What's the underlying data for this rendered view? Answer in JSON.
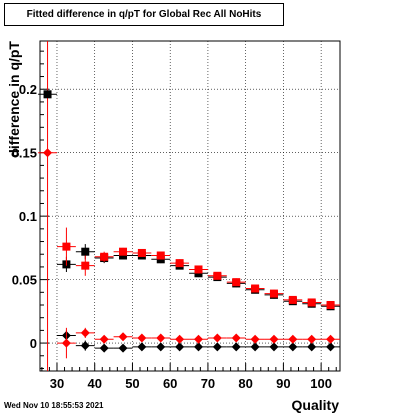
{
  "chart_data": {
    "type": "scatter",
    "title": "Fitted difference in q/pT for Global Rec All NoHits",
    "xlabel": "Quality",
    "ylabel": "difference in q/pT",
    "xlim": [
      25.5,
      105
    ],
    "ylim": [
      -0.022,
      0.238
    ],
    "x_ticks": [
      30,
      40,
      50,
      60,
      70,
      80,
      90,
      100
    ],
    "y_ticks": [
      0,
      0.05,
      0.1,
      0.15,
      0.2
    ],
    "y_tick_labels": [
      "0",
      "0.05",
      "0.1",
      "0.15",
      "0.2"
    ],
    "grid": true,
    "marker_line_x": 27.5,
    "series": [
      {
        "marker": "square",
        "color": "#000000",
        "points": [
          {
            "x": 27.5,
            "y": 0.196,
            "err": 0.002
          },
          {
            "x": 32.5,
            "y": 0.062,
            "err": 0.006
          },
          {
            "x": 37.5,
            "y": 0.072,
            "err": 0.006
          },
          {
            "x": 42.5,
            "y": 0.067,
            "err": 0.004
          },
          {
            "x": 47.5,
            "y": 0.069,
            "err": 0.003
          },
          {
            "x": 52.5,
            "y": 0.069,
            "err": 0.003
          },
          {
            "x": 57.5,
            "y": 0.066,
            "err": 0.003
          },
          {
            "x": 62.5,
            "y": 0.061,
            "err": 0.003
          },
          {
            "x": 67.5,
            "y": 0.055,
            "err": 0.003
          },
          {
            "x": 72.5,
            "y": 0.052,
            "err": 0.003
          },
          {
            "x": 77.5,
            "y": 0.047,
            "err": 0.003
          },
          {
            "x": 82.5,
            "y": 0.042,
            "err": 0.003
          },
          {
            "x": 87.5,
            "y": 0.038,
            "err": 0.003
          },
          {
            "x": 92.5,
            "y": 0.033,
            "err": 0.003
          },
          {
            "x": 97.5,
            "y": 0.031,
            "err": 0.003
          },
          {
            "x": 102.5,
            "y": 0.029,
            "err": 0.003
          }
        ]
      },
      {
        "marker": "square",
        "color": "#ff0000",
        "points": [
          {
            "x": 32.5,
            "y": 0.076,
            "err": 0.015
          },
          {
            "x": 37.5,
            "y": 0.061,
            "err": 0.008
          },
          {
            "x": 42.5,
            "y": 0.068,
            "err": 0.004
          },
          {
            "x": 47.5,
            "y": 0.072,
            "err": 0.003
          },
          {
            "x": 52.5,
            "y": 0.071,
            "err": 0.003
          },
          {
            "x": 57.5,
            "y": 0.069,
            "err": 0.003
          },
          {
            "x": 62.5,
            "y": 0.063,
            "err": 0.003
          },
          {
            "x": 67.5,
            "y": 0.058,
            "err": 0.003
          },
          {
            "x": 72.5,
            "y": 0.053,
            "err": 0.003
          },
          {
            "x": 77.5,
            "y": 0.048,
            "err": 0.003
          },
          {
            "x": 82.5,
            "y": 0.043,
            "err": 0.003
          },
          {
            "x": 87.5,
            "y": 0.039,
            "err": 0.003
          },
          {
            "x": 92.5,
            "y": 0.034,
            "err": 0.003
          },
          {
            "x": 97.5,
            "y": 0.032,
            "err": 0.003
          },
          {
            "x": 102.5,
            "y": 0.03,
            "err": 0.003
          }
        ]
      },
      {
        "marker": "diamond",
        "color": "#000000",
        "points": [
          {
            "x": 32.5,
            "y": 0.006,
            "err": 0.004
          },
          {
            "x": 37.5,
            "y": -0.002,
            "err": 0.004
          },
          {
            "x": 42.5,
            "y": -0.004,
            "err": 0.003
          },
          {
            "x": 47.5,
            "y": -0.004,
            "err": 0.002
          },
          {
            "x": 52.5,
            "y": -0.003,
            "err": 0.002
          },
          {
            "x": 57.5,
            "y": -0.003,
            "err": 0.002
          },
          {
            "x": 62.5,
            "y": -0.003,
            "err": 0.002
          },
          {
            "x": 67.5,
            "y": -0.003,
            "err": 0.002
          },
          {
            "x": 72.5,
            "y": -0.003,
            "err": 0.002
          },
          {
            "x": 77.5,
            "y": -0.003,
            "err": 0.002
          },
          {
            "x": 82.5,
            "y": -0.003,
            "err": 0.002
          },
          {
            "x": 87.5,
            "y": -0.003,
            "err": 0.002
          },
          {
            "x": 92.5,
            "y": -0.003,
            "err": 0.002
          },
          {
            "x": 97.5,
            "y": -0.003,
            "err": 0.002
          },
          {
            "x": 102.5,
            "y": -0.003,
            "err": 0.002
          }
        ]
      },
      {
        "marker": "diamond",
        "color": "#ff0000",
        "points": [
          {
            "x": 27.5,
            "y": 0.15,
            "err": 0.002
          },
          {
            "x": 32.5,
            "y": 0.0,
            "err": 0.012
          },
          {
            "x": 37.5,
            "y": 0.008,
            "err": 0.004
          },
          {
            "x": 42.5,
            "y": 0.003,
            "err": 0.003
          },
          {
            "x": 47.5,
            "y": 0.005,
            "err": 0.002
          },
          {
            "x": 52.5,
            "y": 0.004,
            "err": 0.002
          },
          {
            "x": 57.5,
            "y": 0.004,
            "err": 0.002
          },
          {
            "x": 62.5,
            "y": 0.003,
            "err": 0.002
          },
          {
            "x": 67.5,
            "y": 0.003,
            "err": 0.002
          },
          {
            "x": 72.5,
            "y": 0.004,
            "err": 0.002
          },
          {
            "x": 77.5,
            "y": 0.004,
            "err": 0.002
          },
          {
            "x": 82.5,
            "y": 0.003,
            "err": 0.002
          },
          {
            "x": 87.5,
            "y": 0.003,
            "err": 0.002
          },
          {
            "x": 92.5,
            "y": 0.003,
            "err": 0.002
          },
          {
            "x": 97.5,
            "y": 0.003,
            "err": 0.002
          },
          {
            "x": 102.5,
            "y": 0.003,
            "err": 0.002
          }
        ]
      }
    ]
  },
  "footer": {
    "timestamp": "Wed Nov 10 18:55:53 2021"
  }
}
